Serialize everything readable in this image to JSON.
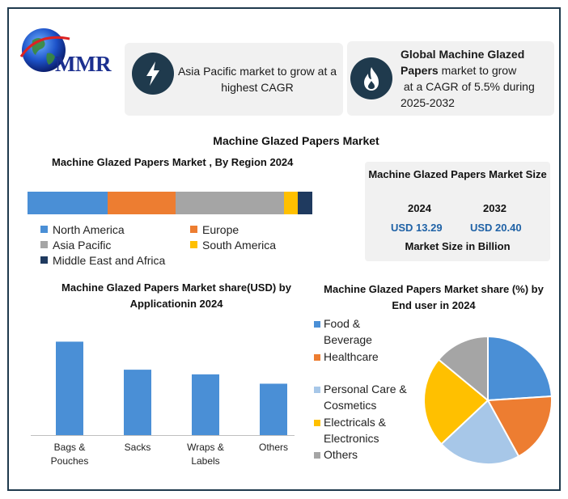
{
  "logo": {
    "text": "MMR"
  },
  "header_cards": {
    "card1": {
      "icon": "lightning-bolt-icon",
      "text": "Asia Pacific market to grow at a highest CAGR"
    },
    "card2": {
      "icon": "flame-icon",
      "bold_text": "Global Machine Glazed Papers",
      "rest_line1": " market to grow",
      "line2": "at a CAGR of 5.5% during",
      "line3": "2025-2032"
    }
  },
  "main_title": "Machine Glazed Papers Market",
  "market_size": {
    "title": "Machine Glazed Papers Market Size",
    "year1": "2024",
    "year2": "2032",
    "value1": "USD 13.29",
    "value2": "USD 20.40",
    "footer": "Market Size in Billion"
  },
  "colors": {
    "blue": "#4a8fd6",
    "orange": "#ed7d31",
    "gray": "#a5a5a5",
    "yellow": "#ffc000",
    "navy": "#1f3a5f",
    "lightblue": "#a7c7e8",
    "frame": "#1f3a4d"
  },
  "chart_data": [
    {
      "type": "bar",
      "orientation": "horizontal-stacked",
      "title": "Machine Glazed Papers Market , By Region 2024",
      "categories": [
        "North America",
        "Europe",
        "Asia Pacific",
        "South America",
        "Middle East and Africa"
      ],
      "values": [
        28,
        24,
        38,
        5,
        5
      ],
      "colors": [
        "#4a8fd6",
        "#ed7d31",
        "#a5a5a5",
        "#ffc000",
        "#1f3a5f"
      ],
      "legend": "bottom"
    },
    {
      "type": "bar",
      "title": "Machine Glazed Papers Market share(USD) by Applicationin 2024",
      "categories": [
        "Bags & Pouches",
        "Sacks",
        "Wraps & Labels",
        "Others"
      ],
      "values": [
        40,
        28,
        26,
        22
      ],
      "ylim": [
        0,
        45
      ],
      "grid": false,
      "color": "#4a8fd6"
    },
    {
      "type": "pie",
      "title": "Machine Glazed Papers Market share (%) by End user in 2024",
      "categories": [
        "Food & Beverage",
        "Healthcare",
        "Personal Care & Cosmetics",
        "Electricals & Electronics",
        "Others"
      ],
      "values": [
        24,
        18,
        21,
        23,
        14
      ],
      "colors": [
        "#4a8fd6",
        "#ed7d31",
        "#a7c7e8",
        "#ffc000",
        "#a5a5a5"
      ],
      "legend": "left"
    }
  ]
}
